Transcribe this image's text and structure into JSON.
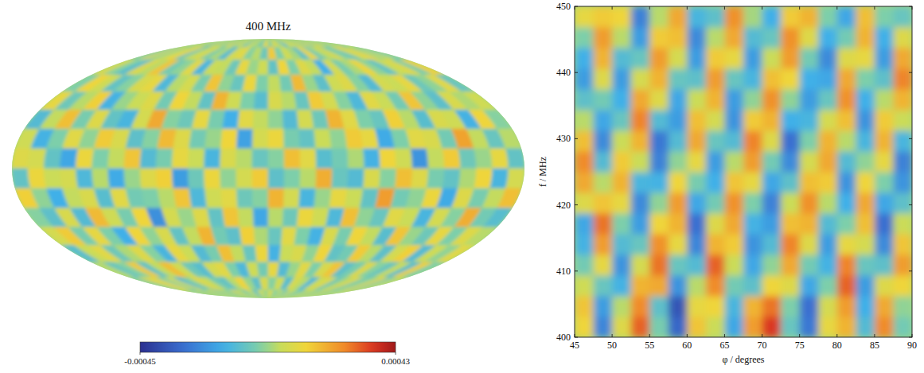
{
  "chart_data": [
    {
      "type": "sky_map",
      "title": "400 MHz",
      "color_range": [
        -0.00045,
        0.00043
      ],
      "color_ticks": [
        -0.00045,
        0.00043
      ],
      "cells": [
        [
          3e-05,
          -5e-05,
          8e-05,
          1e-05,
          -0.0001,
          6e-05,
          2e-05,
          -4e-05,
          0.00011,
          -2e-05,
          5e-05,
          -8e-05,
          4e-05,
          0,
          -6e-05,
          9e-05,
          -3e-05,
          7e-05,
          2e-05,
          -0.00011,
          4e-05,
          6e-05,
          -1e-05,
          8e-05,
          -7e-05,
          3e-05,
          0.0001,
          -4e-05,
          2e-05,
          5e-05,
          -9e-05,
          1e-05
        ],
        [
          -6e-05,
          9e-05,
          -2e-05,
          4e-05,
          0.00012,
          -8e-05,
          3e-05,
          7e-05,
          -5e-05,
          1e-05,
          -0.00012,
          6e-05,
          9e-05,
          -3e-05,
          2e-05,
          -7e-05,
          0.00014,
          -4e-05,
          5e-05,
          0,
          -9e-05,
          0.00011,
          -6e-05,
          2e-05,
          7e-05,
          -3e-05,
          -8e-05,
          5e-05,
          0.00012,
          -1e-05,
          4e-05,
          -6e-05
        ],
        [
          7e-05,
          -3e-05,
          -0.00011,
          8e-05,
          2e-05,
          0.00015,
          -6e-05,
          -2e-05,
          9e-05,
          -0.00014,
          4e-05,
          3e-05,
          -7e-05,
          0.0001,
          -1e-05,
          5e-05,
          -9e-05,
          0.00012,
          -4e-05,
          8e-05,
          3e-05,
          -0.00016,
          6e-05,
          -5e-05,
          1e-05,
          0.00011,
          -2e-05,
          -9e-05,
          4e-05,
          8e-05,
          -5e-05,
          0.00013
        ],
        [
          -4e-05,
          0.00012,
          5e-05,
          -9e-05,
          -3e-05,
          7e-05,
          0.0001,
          -0.00013,
          2e-05,
          6e-05,
          -5e-05,
          0.00015,
          -2e-05,
          -8e-05,
          0.00011,
          -4e-05,
          3e-05,
          -6e-05,
          0.00017,
          -1e-05,
          -0.0001,
          5e-05,
          8e-05,
          -3e-05,
          -0.00012,
          6e-05,
          4e-05,
          0.0001,
          -7e-05,
          -2e-05,
          9e-05,
          -8e-05
        ],
        [
          0.0001,
          -7e-05,
          2e-05,
          0.00013,
          -0.00015,
          -1e-05,
          4e-05,
          8e-05,
          -6e-05,
          0.00012,
          3e-05,
          -9e-05,
          0.00018,
          5e-05,
          -4e-05,
          -0.00011,
          7e-05,
          2e-05,
          -8e-05,
          0.00014,
          6e-05,
          -3e-05,
          -0.00013,
          9e-05,
          4e-05,
          -6e-05,
          0.00015,
          -2e-05,
          -0.0001,
          7e-05,
          1e-05,
          5e-05
        ],
        [
          -0.00012,
          3e-05,
          0.00016,
          -5e-05,
          8e-05,
          -9e-05,
          -0.00014,
          6e-05,
          0.0002,
          -3e-05,
          -7e-05,
          0.0001,
          -5e-05,
          -0.00016,
          9e-05,
          3e-05,
          -2e-05,
          -0.00012,
          6e-05,
          -7e-05,
          0.00018,
          9e-05,
          -4e-05,
          -8e-05,
          0.00013,
          2e-05,
          -0.00011,
          7e-05,
          5e-05,
          -0.00015,
          0.00012,
          -3e-05
        ],
        [
          5e-05,
          -0.00015,
          -4e-05,
          9e-05,
          -2e-05,
          0.00014,
          7e-05,
          -0.0001,
          -3e-05,
          0.00017,
          8e-05,
          -6e-05,
          -1e-05,
          0.00012,
          -0.00019,
          6e-05,
          0.00011,
          -5e-05,
          -9e-05,
          4e-05,
          -2e-05,
          0.00014,
          0.0001,
          -0.00017,
          -4e-05,
          9e-05,
          7e-05,
          -6e-05,
          0.00021,
          3e-05,
          -8e-05,
          2e-05
        ],
        [
          8e-05,
          6e-05,
          -9e-05,
          -0.00018,
          0.00011,
          -4e-05,
          3e-05,
          0.00015,
          -0.00012,
          -5e-05,
          0.0001,
          4e-05,
          -0.00014,
          7e-05,
          2e-05,
          -8e-05,
          -3e-05,
          0.00016,
          9e-05,
          -0.00011,
          -6e-05,
          1e-05,
          -0.00015,
          0.00012,
          5e-05,
          -0.00022,
          3e-05,
          0.00014,
          -7e-05,
          -1e-05,
          0.0001,
          -9e-05
        ],
        [
          -9e-05,
          0.00011,
          4e-05,
          6e-05,
          -0.00013,
          2e-05,
          -0.00017,
          -1e-05,
          8e-05,
          0.00013,
          -0.0002,
          -7e-05,
          0.00011,
          -2e-05,
          6e-05,
          0.00014,
          -0.0001,
          -4e-05,
          2e-05,
          0.00019,
          -8e-05,
          -0.00012,
          7e-05,
          -3e-05,
          0.00016,
          8e-05,
          -5e-05,
          -9e-05,
          1e-05,
          0.00012,
          -0.00014,
          6e-05
        ],
        [
          0.00013,
          -2e-05,
          -0.00016,
          3e-05,
          7e-05,
          -0.00011,
          9e-05,
          -6e-05,
          -4e-05,
          2e-05,
          0.00015,
          -0.00013,
          5e-05,
          9e-05,
          -7e-05,
          -3e-05,
          0.00018,
          6e-05,
          -0.00014,
          -1e-05,
          0.0001,
          4e-05,
          -9e-05,
          0.00022,
          -6e-05,
          -2e-05,
          0.00011,
          -0.00017,
          8e-05,
          -5e-05,
          3e-05,
          0.00016
        ],
        [
          -3e-05,
          -0.0001,
          7e-05,
          -0.00012,
          0.00017,
          5e-05,
          -5e-05,
          0.00012,
          -0.00023,
          6e-05,
          -1e-05,
          8e-05,
          -9e-05,
          0.00015,
          3e-05,
          -0.00018,
          2e-05,
          -7e-05,
          0.00011,
          5e-05,
          -0.00013,
          0.00016,
          -2e-05,
          -8e-05,
          9e-05,
          4e-05,
          -0.00014,
          6e-05,
          -3e-05,
          0.00019,
          -6e-05,
          -0.00011
        ],
        [
          6e-05,
          0.00014,
          -5e-05,
          0.0001,
          -4e-05,
          -0.00016,
          0.00012,
          -2e-05,
          7e-05,
          -9e-05,
          3e-05,
          0.00018,
          -6e-05,
          -0.0001,
          0.00013,
          1e-05,
          -8e-05,
          9e-05,
          -4e-05,
          -0.00015,
          7e-05,
          -5e-05,
          0.00012,
          3e-05,
          -0.00011,
          0.00015,
          -1e-05,
          -7e-05,
          0.0001,
          -4e-05,
          8e-05,
          2e-05
        ],
        [
          -0.00011,
          4e-05,
          9e-05,
          -7e-05,
          1e-05,
          8e-05,
          -3e-05,
          -0.00014,
          0.0001,
          4e-05,
          -0.00012,
          -5e-05,
          0.00016,
          3e-05,
          -8e-05,
          0.00011,
          -0.00015,
          4e-05,
          7e-05,
          -2e-05,
          0.00012,
          -9e-05,
          -6e-05,
          0.00014,
          2e-05,
          -0.0001,
          6e-05,
          0.00013,
          -0.00012,
          5e-05,
          -2e-05,
          9e-05
        ],
        [
          2e-05,
          -8e-05,
          -3e-05,
          0.00014,
          -9e-05,
          3e-05,
          0.00016,
          5e-05,
          -7e-05,
          -0.00011,
          6e-05,
          9e-05,
          -4e-05,
          -0.00013,
          5e-05,
          -6e-05,
          0.0001,
          -0.00012,
          -1e-05,
          9e-05,
          -4e-05,
          7e-05,
          0.00015,
          -0.0001,
          -5e-05,
          8e-05,
          -3e-05,
          -8e-05,
          4e-05,
          -0.00011,
          0.00013,
          -4e-05
        ],
        [
          -5e-05,
          7e-05,
          0.00011,
          -4e-05,
          6e-05,
          -0.00012,
          -2e-05,
          9e-05,
          3e-05,
          -6e-05,
          -9e-05,
          2e-05,
          0.00012,
          -1e-05,
          -0.0001,
          7e-05,
          -3e-05,
          5e-05,
          -0.00011,
          6e-05,
          2e-05,
          -0.00013,
          4e-05,
          8e-05,
          -7e-05,
          1e-05,
          9e-05,
          -5e-05,
          -2e-05,
          0.0001,
          -6e-05,
          3e-05
        ],
        [
          4e-05,
          -2e-05,
          -6e-05,
          3e-05,
          -1e-05,
          5e-05,
          -7e-05,
          2e-05,
          -4e-05,
          8e-05,
          1e-05,
          -5e-05,
          3e-05,
          -9e-05,
          4e-05,
          -1e-05,
          6e-05,
          -3e-05,
          2e-05,
          -6e-05,
          5e-05,
          -2e-05,
          -8e-05,
          3e-05,
          1e-05,
          -4e-05,
          7e-05,
          0,
          -5e-05,
          2e-05,
          -3e-05,
          6e-05
        ]
      ]
    },
    {
      "type": "heatmap",
      "x_label": "φ / degrees",
      "y_label": "f / MHz",
      "xlim": [
        45,
        90
      ],
      "ylim": [
        400,
        450
      ],
      "xticks": [
        45,
        50,
        55,
        60,
        65,
        70,
        75,
        80,
        85,
        90
      ],
      "yticks": [
        400,
        410,
        420,
        430,
        440,
        450
      ],
      "color_range": [
        -0.00045,
        0.00043
      ],
      "cells": [
        [
          0.00012,
          -0.00025,
          8e-05,
          0.0003,
          -5e-05,
          -0.00032,
          0.00015,
          4e-05,
          -0.00018,
          0.00022,
          0.00035,
          -8e-05,
          -0.00028,
          0.0001,
          0.00018,
          -0.00012,
          0.00025,
          -6e-05
        ],
        [
          0.00015,
          -0.0002,
          2e-05,
          0.00025,
          -0.0001,
          -0.00036,
          0.0001,
          0.00012,
          -0.00014,
          0.00018,
          0.00028,
          -4e-05,
          -0.0003,
          6e-05,
          0.00022,
          -0.00016,
          0.0002,
          -2e-05
        ],
        [
          5e-05,
          -8e-05,
          -0.00015,
          0.00018,
          0.0002,
          -0.00022,
          2e-05,
          0.00025,
          -6e-05,
          -0.0001,
          0.00012,
          8e-05,
          -0.00018,
          -4e-05,
          0.0003,
          -0.0002,
          8e-05,
          0.00012
        ],
        [
          -6e-05,
          0.0001,
          -0.00022,
          6e-05,
          0.00028,
          -8e-05,
          -0.00012,
          0.0003,
          4e-05,
          -0.00018,
          -2e-05,
          0.0002,
          -6e-05,
          -0.00015,
          0.00026,
          -8e-05,
          -0.0001,
          0.00022
        ],
        [
          -0.00015,
          0.00022,
          -0.00012,
          -8e-05,
          0.00024,
          0.0001,
          -0.00025,
          0.00018,
          0.00014,
          -0.00022,
          -0.00012,
          0.00026,
          8e-05,
          -0.0002,
          0.0001,
          6e-05,
          -0.00024,
          0.00015
        ],
        [
          -0.00018,
          0.00028,
          -4e-05,
          -0.0002,
          0.00012,
          0.00018,
          -0.0003,
          8e-05,
          0.0002,
          -0.00015,
          -0.0002,
          0.00016,
          0.00018,
          -0.00012,
          -4e-05,
          0.00016,
          -0.0003,
          4e-05
        ],
        [
          8e-05,
          0.00015,
          0.0001,
          -0.00024,
          -2e-05,
          0.00022,
          -0.00018,
          -6e-05,
          0.00024,
          -4e-05,
          -0.00026,
          4e-05,
          0.00024,
          2e-05,
          -0.00016,
          0.0002,
          -0.00018,
          -0.0001
        ],
        [
          0.0002,
          2e-05,
          0.00018,
          -0.00014,
          -0.00015,
          0.00012,
          -5e-05,
          -0.00016,
          0.00015,
          0.0001,
          -0.00018,
          -0.0001,
          0.00016,
          0.00014,
          -0.00022,
          0.00012,
          -4e-05,
          -0.00022
        ],
        [
          0.00025,
          -0.00012,
          0.00014,
          4e-05,
          -0.00026,
          -2e-05,
          0.0001,
          -0.0002,
          2e-05,
          0.00022,
          -6e-05,
          -0.00024,
          6e-05,
          0.0002,
          -0.00012,
          -2e-05,
          0.0001,
          -0.00026
        ],
        [
          0.00016,
          -0.00024,
          4e-05,
          0.00018,
          -0.00028,
          -0.00012,
          0.0002,
          -8e-05,
          -0.00012,
          0.00026,
          8e-05,
          -0.0003,
          -4e-05,
          0.00018,
          2e-05,
          -0.00014,
          0.00018,
          -0.00014
        ],
        [
          2e-05,
          -0.00018,
          -8e-05,
          0.00026,
          -0.00012,
          -0.0002,
          0.00016,
          6e-05,
          -0.00022,
          0.00014,
          0.00018,
          -0.00016,
          -0.00014,
          6e-05,
          0.00016,
          -0.00022,
          0.00014,
          4e-05
        ],
        [
          -0.0001,
          -6e-05,
          -0.00016,
          0.0002,
          8e-05,
          -0.00018,
          4e-05,
          0.00018,
          -0.0002,
          -2e-05,
          0.00024,
          -2e-05,
          -0.0002,
          -8e-05,
          0.00024,
          -0.00016,
          2e-05,
          0.00018
        ],
        [
          -0.0002,
          8e-05,
          -0.0002,
          6e-05,
          0.00018,
          -8e-05,
          -0.0001,
          0.00022,
          -8e-05,
          -0.00014,
          0.00016,
          0.00012,
          -0.00016,
          -0.00018,
          0.0002,
          -4e-05,
          -0.0001,
          0.00026
        ],
        [
          -0.00016,
          0.00018,
          -0.00012,
          -8e-05,
          0.00022,
          6e-05,
          -0.0002,
          0.00014,
          0.0001,
          -0.0002,
          4e-05,
          0.00022,
          -6e-05,
          -0.00024,
          8e-05,
          0.0001,
          -0.0002,
          0.0002
        ],
        [
          -4e-05,
          0.00022,
          2e-05,
          -0.0002,
          0.00014,
          0.00016,
          -0.00024,
          2e-05,
          0.0002,
          -0.00012,
          -8e-05,
          0.00024,
          8e-05,
          -0.00016,
          -6e-05,
          0.00018,
          -0.00016,
          8e-05
        ],
        [
          0.0001,
          0.00014,
          0.00012,
          -0.00026,
          2e-05,
          0.0002,
          -0.00014,
          -0.0001,
          0.00024,
          0,
          -0.00016,
          0.00014,
          0.00018,
          -4e-05,
          -0.00018,
          0.00016,
          -4e-05,
          -8e-05
        ]
      ]
    }
  ]
}
